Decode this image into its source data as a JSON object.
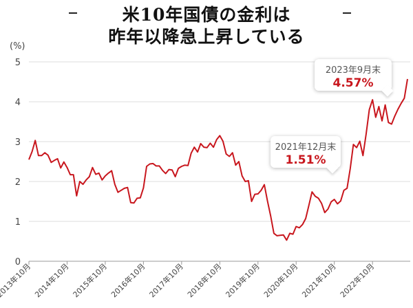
{
  "title": {
    "line1": "米10年国債の金利は",
    "line2": "昨年以降急上昇している"
  },
  "unit_label": "(%)",
  "callouts": [
    {
      "date": "2021年12月末",
      "value": "1.51%"
    },
    {
      "date": "2023年9月末",
      "value": "4.57%"
    }
  ],
  "colors": {
    "line": "#c8161d",
    "accent": "#c8161d",
    "grid": "#dddddd",
    "axis": "#999999"
  },
  "chart_data": {
    "type": "line",
    "title": "米10年国債の金利は昨年以降急上昇している",
    "xlabel": "",
    "ylabel": "(%)",
    "ylim": [
      0,
      5
    ],
    "yticks": [
      0,
      1,
      2,
      3,
      4,
      5
    ],
    "grid": true,
    "xtick_labels": [
      "2013年10月",
      "2014年10月",
      "2015年10月",
      "2016年10月",
      "2017年10月",
      "2018年10月",
      "2019年10月",
      "2020年10月",
      "2021年10月",
      "2022年10月"
    ],
    "series": [
      {
        "values": [
          [
            "2013-10",
            2.55
          ],
          [
            "2013-11",
            2.75
          ],
          [
            "2013-12",
            3.03
          ],
          [
            "2014-01",
            2.65
          ],
          [
            "2014-02",
            2.65
          ],
          [
            "2014-03",
            2.72
          ],
          [
            "2014-04",
            2.66
          ],
          [
            "2014-05",
            2.48
          ],
          [
            "2014-06",
            2.53
          ],
          [
            "2014-07",
            2.57
          ],
          [
            "2014-08",
            2.34
          ],
          [
            "2014-09",
            2.49
          ],
          [
            "2014-10",
            2.35
          ],
          [
            "2014-11",
            2.17
          ],
          [
            "2014-12",
            2.17
          ],
          [
            "2015-01",
            1.64
          ],
          [
            "2015-02",
            2.0
          ],
          [
            "2015-03",
            1.93
          ],
          [
            "2015-04",
            2.04
          ],
          [
            "2015-05",
            2.12
          ],
          [
            "2015-06",
            2.35
          ],
          [
            "2015-07",
            2.18
          ],
          [
            "2015-08",
            2.21
          ],
          [
            "2015-09",
            2.04
          ],
          [
            "2015-10",
            2.14
          ],
          [
            "2015-11",
            2.21
          ],
          [
            "2015-12",
            2.27
          ],
          [
            "2016-01",
            1.93
          ],
          [
            "2016-02",
            1.73
          ],
          [
            "2016-03",
            1.78
          ],
          [
            "2016-04",
            1.83
          ],
          [
            "2016-05",
            1.85
          ],
          [
            "2016-06",
            1.47
          ],
          [
            "2016-07",
            1.46
          ],
          [
            "2016-08",
            1.58
          ],
          [
            "2016-09",
            1.59
          ],
          [
            "2016-10",
            1.84
          ],
          [
            "2016-11",
            2.38
          ],
          [
            "2016-12",
            2.44
          ],
          [
            "2017-01",
            2.45
          ],
          [
            "2017-02",
            2.39
          ],
          [
            "2017-03",
            2.39
          ],
          [
            "2017-04",
            2.28
          ],
          [
            "2017-05",
            2.2
          ],
          [
            "2017-06",
            2.3
          ],
          [
            "2017-07",
            2.29
          ],
          [
            "2017-08",
            2.12
          ],
          [
            "2017-09",
            2.33
          ],
          [
            "2017-10",
            2.38
          ],
          [
            "2017-11",
            2.41
          ],
          [
            "2017-12",
            2.4
          ],
          [
            "2018-01",
            2.71
          ],
          [
            "2018-02",
            2.86
          ],
          [
            "2018-03",
            2.74
          ],
          [
            "2018-04",
            2.95
          ],
          [
            "2018-05",
            2.86
          ],
          [
            "2018-06",
            2.85
          ],
          [
            "2018-07",
            2.96
          ],
          [
            "2018-08",
            2.86
          ],
          [
            "2018-09",
            3.05
          ],
          [
            "2018-10",
            3.15
          ],
          [
            "2018-11",
            3.01
          ],
          [
            "2018-12",
            2.69
          ],
          [
            "2019-01",
            2.63
          ],
          [
            "2019-02",
            2.72
          ],
          [
            "2019-03",
            2.41
          ],
          [
            "2019-04",
            2.5
          ],
          [
            "2019-05",
            2.14
          ],
          [
            "2019-06",
            2.0
          ],
          [
            "2019-07",
            2.02
          ],
          [
            "2019-08",
            1.5
          ],
          [
            "2019-09",
            1.68
          ],
          [
            "2019-10",
            1.69
          ],
          [
            "2019-11",
            1.78
          ],
          [
            "2019-12",
            1.92
          ],
          [
            "2020-01",
            1.51
          ],
          [
            "2020-02",
            1.13
          ],
          [
            "2020-03",
            0.7
          ],
          [
            "2020-04",
            0.64
          ],
          [
            "2020-05",
            0.65
          ],
          [
            "2020-06",
            0.66
          ],
          [
            "2020-07",
            0.53
          ],
          [
            "2020-08",
            0.7
          ],
          [
            "2020-09",
            0.68
          ],
          [
            "2020-10",
            0.87
          ],
          [
            "2020-11",
            0.84
          ],
          [
            "2020-12",
            0.92
          ],
          [
            "2021-01",
            1.07
          ],
          [
            "2021-02",
            1.4
          ],
          [
            "2021-03",
            1.74
          ],
          [
            "2021-04",
            1.63
          ],
          [
            "2021-05",
            1.58
          ],
          [
            "2021-06",
            1.45
          ],
          [
            "2021-07",
            1.22
          ],
          [
            "2021-08",
            1.31
          ],
          [
            "2021-09",
            1.49
          ],
          [
            "2021-10",
            1.55
          ],
          [
            "2021-11",
            1.44
          ],
          [
            "2021-12",
            1.51
          ],
          [
            "2022-01",
            1.78
          ],
          [
            "2022-02",
            1.83
          ],
          [
            "2022-03",
            2.32
          ],
          [
            "2022-04",
            2.93
          ],
          [
            "2022-05",
            2.85
          ],
          [
            "2022-06",
            3.01
          ],
          [
            "2022-07",
            2.65
          ],
          [
            "2022-08",
            3.19
          ],
          [
            "2022-09",
            3.8
          ],
          [
            "2022-10",
            4.05
          ],
          [
            "2022-11",
            3.61
          ],
          [
            "2022-12",
            3.88
          ],
          [
            "2023-01",
            3.52
          ],
          [
            "2023-02",
            3.92
          ],
          [
            "2023-03",
            3.48
          ],
          [
            "2023-04",
            3.44
          ],
          [
            "2023-05",
            3.64
          ],
          [
            "2023-06",
            3.81
          ],
          [
            "2023-07",
            3.96
          ],
          [
            "2023-08",
            4.09
          ],
          [
            "2023-09",
            4.57
          ]
        ]
      }
    ],
    "annotations": [
      {
        "x": "2021-12",
        "y": 1.51,
        "label": "2021年12月末 1.51%"
      },
      {
        "x": "2023-09",
        "y": 4.57,
        "label": "2023年9月末 4.57%"
      }
    ]
  }
}
